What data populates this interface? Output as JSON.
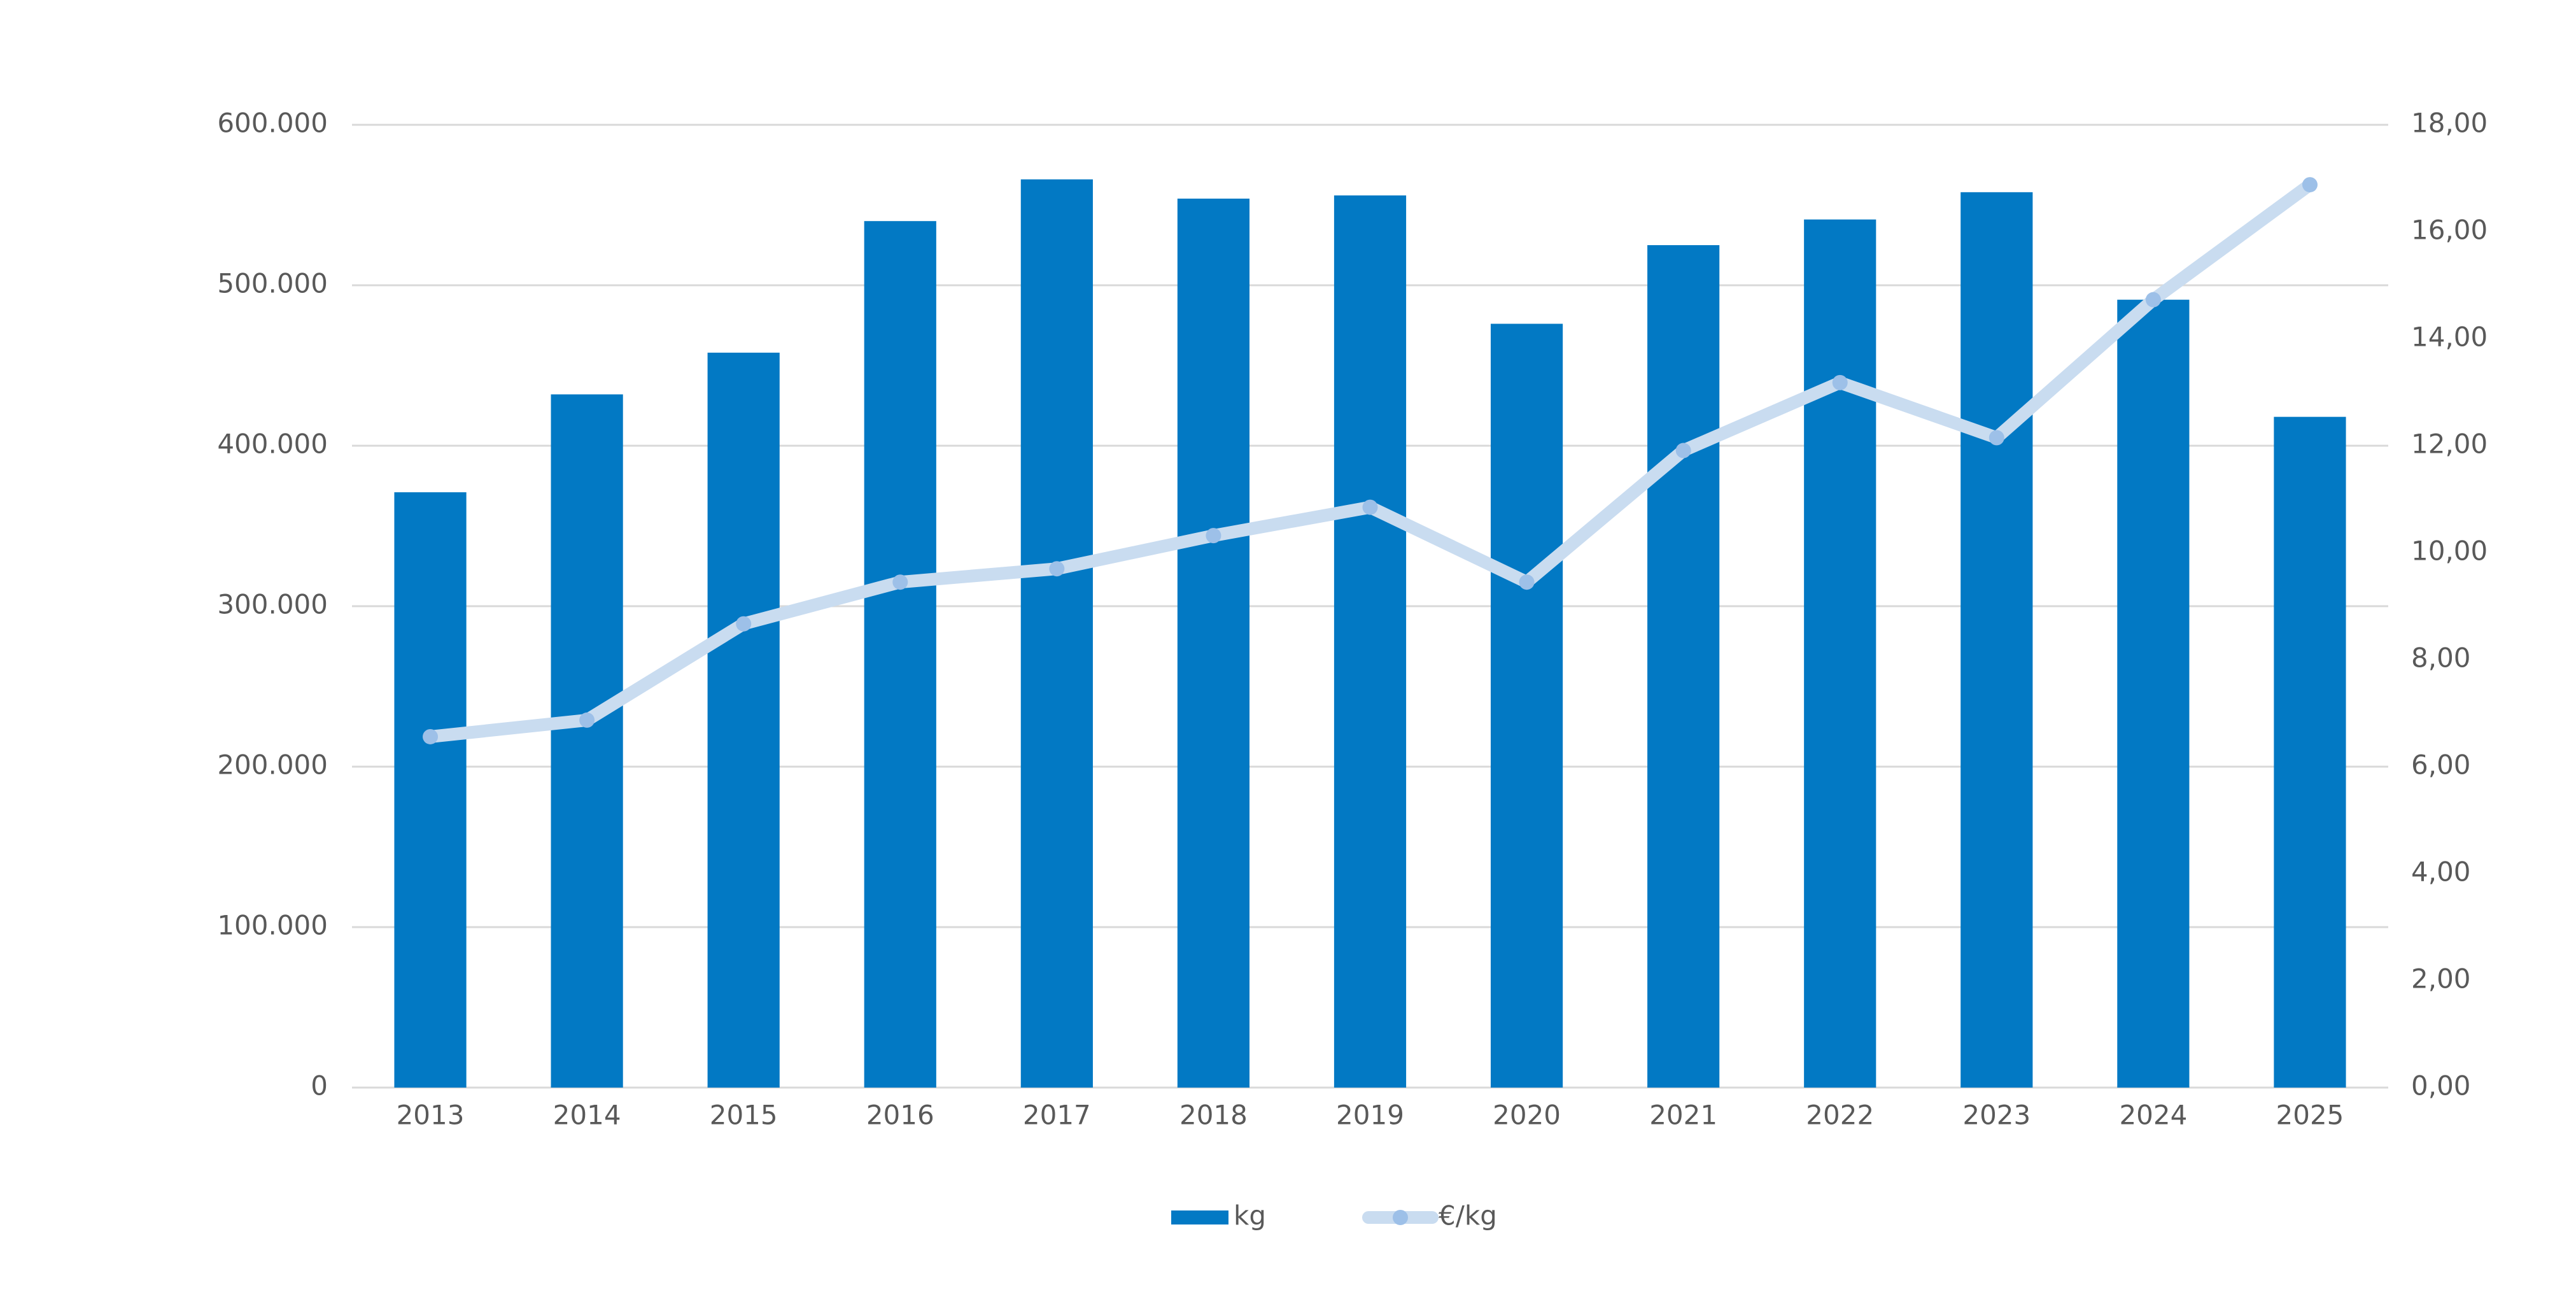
{
  "chart_data": {
    "type": "bar-line",
    "categories": [
      "2013",
      "2014",
      "2015",
      "2016",
      "2017",
      "2018",
      "2019",
      "2020",
      "2021",
      "2022",
      "2023",
      "2024",
      "2025"
    ],
    "series": [
      {
        "name": "kg",
        "type": "bar",
        "color": "#0279c4",
        "values": [
          371000,
          432000,
          458000,
          540000,
          566000,
          554000,
          556000,
          476000,
          525000,
          541000,
          558000,
          491000,
          418000
        ]
      },
      {
        "name": "€/kg",
        "type": "line",
        "axis": "y2",
        "color": "#c9dcf0",
        "marker_color": "#9dc0e8",
        "values": [
          6.56,
          6.87,
          8.67,
          9.45,
          9.7,
          10.32,
          10.85,
          9.45,
          11.91,
          13.18,
          12.15,
          14.73,
          16.88
        ]
      }
    ],
    "ylim": [
      0,
      600000
    ],
    "yticks": [
      0,
      {
        "value": 100000,
        "label": "100.000"
      },
      {
        "value": 200000,
        "label": "200.000"
      },
      {
        "value": 300000,
        "label": "300.000"
      },
      {
        "value": 400000,
        "label": "400.000"
      },
      {
        "value": 500000,
        "label": "500.000"
      },
      {
        "value": 600000,
        "label": "600.000"
      }
    ],
    "y2lim": [
      0,
      18
    ],
    "y2ticks": [
      {
        "value": 0,
        "label": "0,00"
      },
      {
        "value": 2,
        "label": "2,00"
      },
      {
        "value": 4,
        "label": "4,00"
      },
      {
        "value": 6,
        "label": "6,00"
      },
      {
        "value": 8,
        "label": "8,00"
      },
      {
        "value": 10,
        "label": "10,00"
      },
      {
        "value": 12,
        "label": "12,00"
      },
      {
        "value": 14,
        "label": "14,00"
      },
      {
        "value": 16,
        "label": "16,00"
      },
      {
        "value": 18,
        "label": "18,00"
      }
    ],
    "grid": true,
    "legend": "bottom"
  }
}
